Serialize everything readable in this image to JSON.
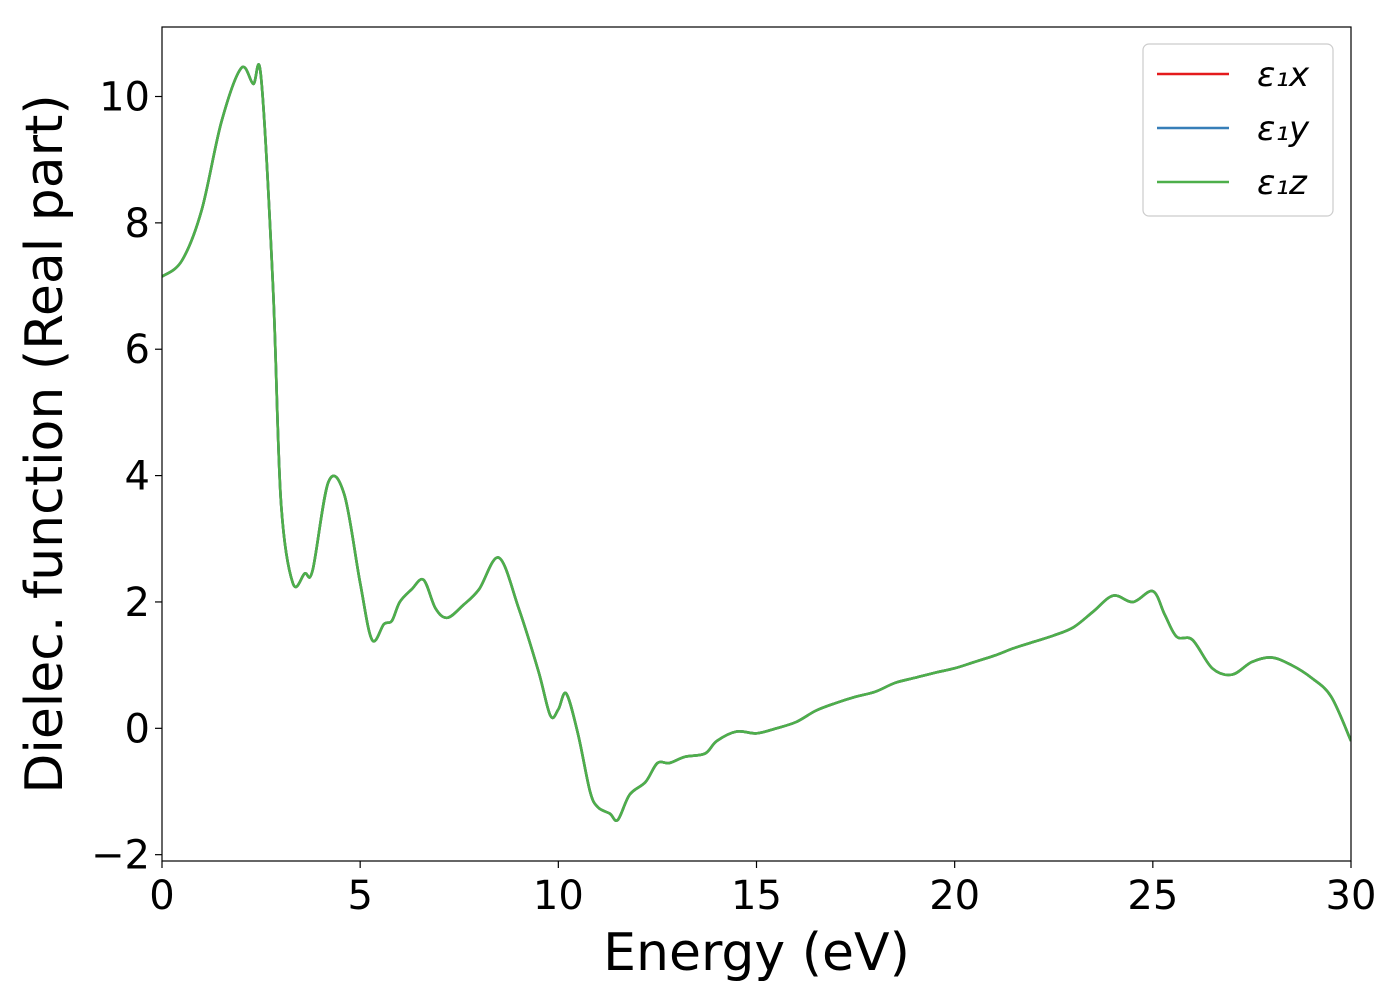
{
  "chart_data": {
    "type": "line",
    "title": "",
    "xlabel": "Energy (eV)",
    "ylabel": "Dielec. function (Real part)",
    "xlim": [
      0,
      30
    ],
    "ylim": [
      -2.1,
      11.1
    ],
    "xticks": [
      0,
      5,
      10,
      15,
      20,
      25,
      30
    ],
    "xtick_labels": [
      "0",
      "5",
      "10",
      "15",
      "20",
      "25",
      "30"
    ],
    "yticks": [
      -2,
      0,
      2,
      4,
      6,
      8,
      10
    ],
    "ytick_labels": [
      "−2",
      "0",
      "2",
      "4",
      "6",
      "8",
      "10"
    ],
    "grid": false,
    "legend_position": "top-right",
    "x": [
      0,
      0.5,
      1.0,
      1.5,
      2.0,
      2.3,
      2.5,
      2.8,
      3.0,
      3.3,
      3.6,
      3.8,
      4.2,
      4.6,
      5.0,
      5.3,
      5.6,
      5.8,
      6.0,
      6.3,
      6.6,
      6.9,
      7.2,
      7.6,
      8.0,
      8.5,
      9.0,
      9.5,
      9.8,
      10.0,
      10.2,
      10.5,
      10.8,
      11.0,
      11.3,
      11.5,
      11.8,
      12.2,
      12.5,
      12.8,
      13.2,
      13.7,
      14.0,
      14.5,
      15.0,
      15.5,
      16.0,
      16.5,
      17.0,
      17.5,
      18.0,
      18.5,
      19.0,
      19.5,
      20.0,
      20.5,
      21.0,
      21.5,
      22.0,
      22.5,
      23.0,
      23.5,
      24.0,
      24.5,
      25.0,
      25.3,
      25.6,
      26.0,
      26.5,
      27.0,
      27.5,
      28.0,
      28.5,
      29.0,
      29.5,
      30.0
    ],
    "series": [
      {
        "name": "ε₁x",
        "color": "#e41a1c",
        "values": [
          7.15,
          7.4,
          8.2,
          9.6,
          10.45,
          10.2,
          10.3,
          7.0,
          3.6,
          2.3,
          2.45,
          2.5,
          3.9,
          3.7,
          2.3,
          1.4,
          1.65,
          1.7,
          2.0,
          2.2,
          2.35,
          1.9,
          1.75,
          1.95,
          2.2,
          2.7,
          1.9,
          0.9,
          0.2,
          0.3,
          0.55,
          -0.1,
          -1.0,
          -1.25,
          -1.35,
          -1.45,
          -1.05,
          -0.85,
          -0.55,
          -0.55,
          -0.45,
          -0.4,
          -0.2,
          -0.05,
          -0.08,
          0.0,
          0.1,
          0.28,
          0.4,
          0.5,
          0.58,
          0.72,
          0.8,
          0.88,
          0.95,
          1.05,
          1.15,
          1.27,
          1.37,
          1.47,
          1.6,
          1.85,
          2.1,
          2.0,
          2.17,
          1.8,
          1.45,
          1.4,
          0.95,
          0.85,
          1.05,
          1.12,
          1.0,
          0.8,
          0.5,
          -0.2
        ]
      },
      {
        "name": "ε₁y",
        "color": "#377eb8",
        "values": [
          7.15,
          7.4,
          8.2,
          9.6,
          10.45,
          10.2,
          10.3,
          7.0,
          3.6,
          2.3,
          2.45,
          2.5,
          3.9,
          3.7,
          2.3,
          1.4,
          1.65,
          1.7,
          2.0,
          2.2,
          2.35,
          1.9,
          1.75,
          1.95,
          2.2,
          2.7,
          1.9,
          0.9,
          0.2,
          0.3,
          0.55,
          -0.1,
          -1.0,
          -1.25,
          -1.35,
          -1.45,
          -1.05,
          -0.85,
          -0.55,
          -0.55,
          -0.45,
          -0.4,
          -0.2,
          -0.05,
          -0.08,
          0.0,
          0.1,
          0.28,
          0.4,
          0.5,
          0.58,
          0.72,
          0.8,
          0.88,
          0.95,
          1.05,
          1.15,
          1.27,
          1.37,
          1.47,
          1.6,
          1.85,
          2.1,
          2.0,
          2.17,
          1.8,
          1.45,
          1.4,
          0.95,
          0.85,
          1.05,
          1.12,
          1.0,
          0.8,
          0.5,
          -0.2
        ]
      },
      {
        "name": "ε₁z",
        "color": "#4daf4a",
        "values": [
          7.15,
          7.4,
          8.2,
          9.6,
          10.45,
          10.2,
          10.3,
          7.0,
          3.6,
          2.3,
          2.45,
          2.5,
          3.9,
          3.7,
          2.3,
          1.4,
          1.65,
          1.7,
          2.0,
          2.2,
          2.35,
          1.9,
          1.75,
          1.95,
          2.2,
          2.7,
          1.9,
          0.9,
          0.2,
          0.3,
          0.55,
          -0.1,
          -1.0,
          -1.25,
          -1.35,
          -1.45,
          -1.05,
          -0.85,
          -0.55,
          -0.55,
          -0.45,
          -0.4,
          -0.2,
          -0.05,
          -0.08,
          0.0,
          0.1,
          0.28,
          0.4,
          0.5,
          0.58,
          0.72,
          0.8,
          0.88,
          0.95,
          1.05,
          1.15,
          1.27,
          1.37,
          1.47,
          1.6,
          1.85,
          2.1,
          2.0,
          2.17,
          1.8,
          1.45,
          1.4,
          0.95,
          0.85,
          1.05,
          1.12,
          1.0,
          0.8,
          0.5,
          -0.2
        ]
      }
    ]
  }
}
